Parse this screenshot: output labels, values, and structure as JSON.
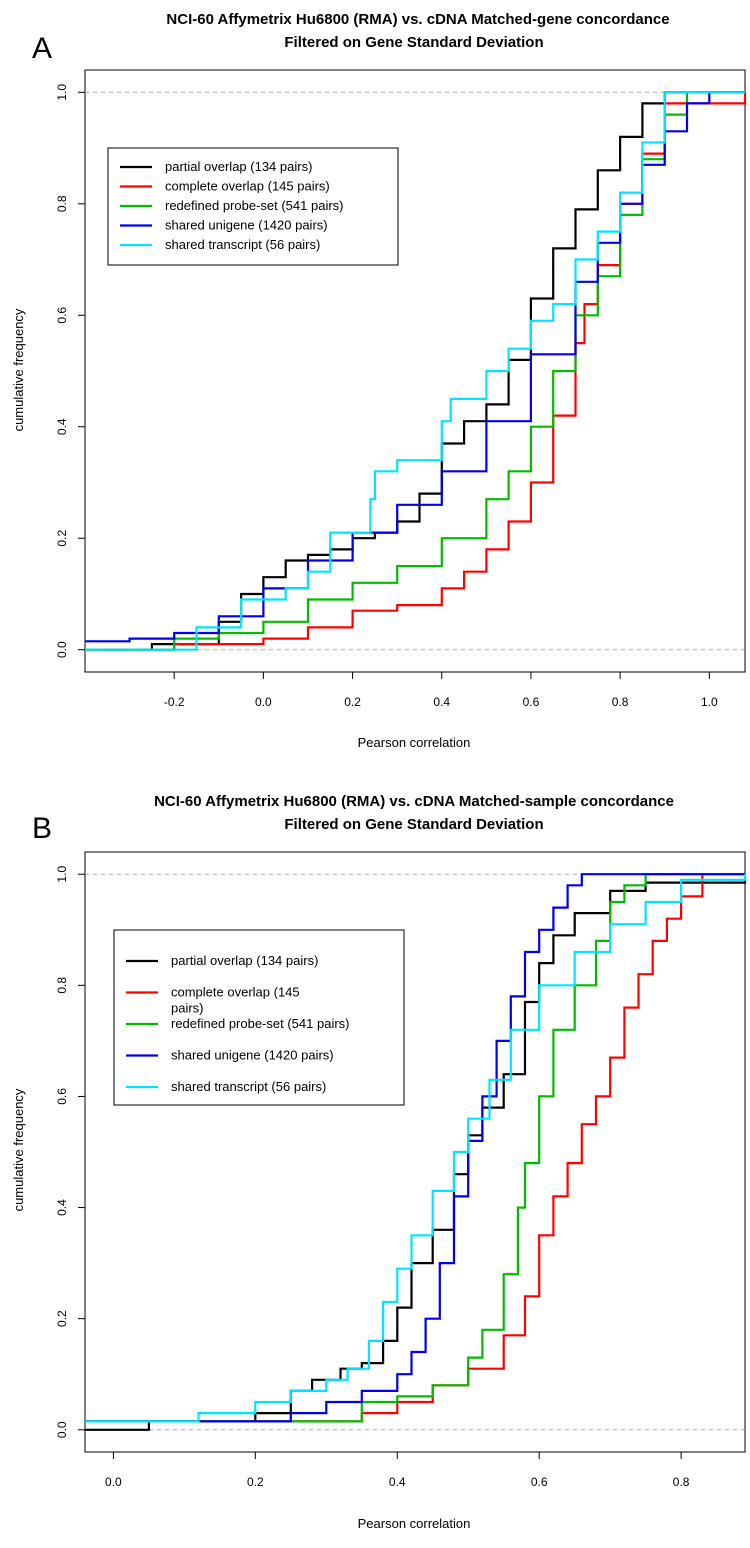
{
  "chart_data": [
    {
      "type": "line",
      "panel_label": "A",
      "title": "NCI-60 Affymetrix Hu6800 (RMA) vs. cDNA Matched-gene concordance",
      "subtitle": "Filtered on Gene Standard Deviation",
      "xlabel": "Pearson correlation",
      "ylabel": "cumulative frequency",
      "xlim": [
        -0.4,
        1.08
      ],
      "ylim": [
        -0.04,
        1.04
      ],
      "xticks": [
        -0.2,
        0.0,
        0.2,
        0.4,
        0.6,
        0.8,
        1.0
      ],
      "xtick_labels": [
        "-0.2",
        "0.0",
        "0.2",
        "0.4",
        "0.6",
        "0.8",
        "1.0"
      ],
      "yticks": [
        0.0,
        0.2,
        0.4,
        0.6,
        0.8,
        1.0
      ],
      "ytick_labels": [
        "0.0",
        "0.2",
        "0.4",
        "0.6",
        "0.8",
        "1.0"
      ],
      "reference_lines": [
        0,
        1
      ],
      "legend_position": "top-left",
      "series": [
        {
          "name": "partial overlap (134 pairs)",
          "color": "#000000",
          "x": [
            -0.4,
            -0.25,
            -0.1,
            -0.05,
            0.0,
            0.05,
            0.1,
            0.15,
            0.2,
            0.25,
            0.3,
            0.35,
            0.4,
            0.45,
            0.5,
            0.55,
            0.6,
            0.65,
            0.7,
            0.75,
            0.8,
            0.85,
            0.9,
            1.08
          ],
          "y": [
            0.0,
            0.01,
            0.05,
            0.1,
            0.13,
            0.16,
            0.17,
            0.18,
            0.2,
            0.21,
            0.23,
            0.28,
            0.37,
            0.41,
            0.44,
            0.52,
            0.63,
            0.72,
            0.79,
            0.86,
            0.92,
            0.98,
            1.0,
            1.0
          ]
        },
        {
          "name": "complete overlap (145 pairs)",
          "color": "#ff0000",
          "x": [
            -0.4,
            -0.2,
            -0.1,
            0.0,
            0.1,
            0.2,
            0.3,
            0.4,
            0.45,
            0.5,
            0.55,
            0.6,
            0.65,
            0.7,
            0.72,
            0.75,
            0.8,
            0.85,
            0.9,
            1.08
          ],
          "y": [
            0.0,
            0.01,
            0.01,
            0.02,
            0.04,
            0.07,
            0.08,
            0.11,
            0.14,
            0.18,
            0.23,
            0.3,
            0.42,
            0.55,
            0.62,
            0.69,
            0.8,
            0.89,
            0.98,
            1.0
          ]
        },
        {
          "name": "redefined probe-set (541 pairs)",
          "color": "#00bb00",
          "x": [
            -0.4,
            -0.2,
            -0.1,
            0.0,
            0.1,
            0.2,
            0.3,
            0.4,
            0.5,
            0.55,
            0.6,
            0.65,
            0.7,
            0.75,
            0.8,
            0.85,
            0.9,
            0.95,
            1.08
          ],
          "y": [
            0.0,
            0.02,
            0.03,
            0.05,
            0.09,
            0.12,
            0.15,
            0.2,
            0.27,
            0.32,
            0.4,
            0.5,
            0.6,
            0.67,
            0.78,
            0.88,
            0.96,
            1.0,
            1.0
          ]
        },
        {
          "name": "shared unigene (1420 pairs)",
          "color": "#0000ee",
          "x": [
            -0.4,
            -0.3,
            -0.2,
            -0.1,
            0.0,
            0.1,
            0.2,
            0.3,
            0.4,
            0.5,
            0.6,
            0.7,
            0.75,
            0.8,
            0.85,
            0.9,
            0.95,
            1.0,
            1.08
          ],
          "y": [
            0.015,
            0.02,
            0.03,
            0.06,
            0.11,
            0.16,
            0.21,
            0.26,
            0.32,
            0.41,
            0.53,
            0.66,
            0.73,
            0.8,
            0.87,
            0.93,
            0.98,
            1.0,
            1.0
          ]
        },
        {
          "name": "shared transcript (56 pairs)",
          "color": "#00e5ff",
          "x": [
            -0.4,
            -0.16,
            -0.15,
            -0.05,
            0.05,
            0.1,
            0.15,
            0.24,
            0.25,
            0.3,
            0.4,
            0.42,
            0.5,
            0.55,
            0.6,
            0.65,
            0.7,
            0.75,
            0.8,
            0.85,
            0.9,
            1.08
          ],
          "y": [
            0.0,
            0.0,
            0.04,
            0.09,
            0.11,
            0.14,
            0.21,
            0.27,
            0.32,
            0.34,
            0.41,
            0.45,
            0.5,
            0.54,
            0.59,
            0.62,
            0.7,
            0.75,
            0.82,
            0.91,
            1.0,
            1.0
          ]
        }
      ]
    },
    {
      "type": "line",
      "panel_label": "B",
      "title": "NCI-60 Affymetrix Hu6800 (RMA) vs. cDNA Matched-sample concordance",
      "subtitle": "Filtered on Gene Standard Deviation",
      "xlabel": "Pearson correlation",
      "ylabel": "cumulative frequency",
      "xlim": [
        -0.04,
        0.89
      ],
      "ylim": [
        -0.04,
        1.04
      ],
      "xticks": [
        0.0,
        0.2,
        0.4,
        0.6,
        0.8
      ],
      "xtick_labels": [
        "0.0",
        "0.2",
        "0.4",
        "0.6",
        "0.8"
      ],
      "yticks": [
        0.0,
        0.2,
        0.4,
        0.6,
        0.8,
        1.0
      ],
      "ytick_labels": [
        "0.0",
        "0.2",
        "0.4",
        "0.6",
        "0.8",
        "1.0"
      ],
      "reference_lines": [
        0,
        1
      ],
      "legend_position": "left",
      "series": [
        {
          "name": "partial overlap (134 pairs)",
          "color": "#000000",
          "x": [
            -0.04,
            0.05,
            0.2,
            0.25,
            0.28,
            0.32,
            0.35,
            0.38,
            0.4,
            0.42,
            0.45,
            0.48,
            0.5,
            0.52,
            0.55,
            0.58,
            0.6,
            0.62,
            0.65,
            0.7,
            0.75,
            0.89
          ],
          "y": [
            0.0,
            0.015,
            0.03,
            0.07,
            0.09,
            0.11,
            0.12,
            0.16,
            0.22,
            0.3,
            0.36,
            0.46,
            0.53,
            0.58,
            0.64,
            0.77,
            0.84,
            0.89,
            0.93,
            0.97,
            0.985,
            1.0
          ]
        },
        {
          "name": "complete overlap (145 pairs)",
          "color": "#ff0000",
          "x": [
            -0.04,
            0.3,
            0.35,
            0.4,
            0.45,
            0.5,
            0.55,
            0.58,
            0.6,
            0.62,
            0.64,
            0.66,
            0.68,
            0.7,
            0.72,
            0.74,
            0.76,
            0.78,
            0.8,
            0.83,
            0.89
          ],
          "y": [
            0.015,
            0.015,
            0.03,
            0.05,
            0.08,
            0.11,
            0.17,
            0.24,
            0.35,
            0.42,
            0.48,
            0.55,
            0.6,
            0.67,
            0.76,
            0.82,
            0.88,
            0.92,
            0.96,
            1.0,
            1.0
          ]
        },
        {
          "name": "redefined probe-set (541 pairs)",
          "color": "#00bb00",
          "x": [
            -0.04,
            0.28,
            0.35,
            0.4,
            0.45,
            0.5,
            0.52,
            0.55,
            0.57,
            0.58,
            0.6,
            0.62,
            0.65,
            0.68,
            0.7,
            0.72,
            0.75,
            0.8,
            0.89
          ],
          "y": [
            0.015,
            0.015,
            0.05,
            0.06,
            0.08,
            0.13,
            0.18,
            0.28,
            0.4,
            0.48,
            0.6,
            0.72,
            0.8,
            0.88,
            0.95,
            0.98,
            1.0,
            1.0,
            1.0
          ]
        },
        {
          "name": "shared unigene (1420 pairs)",
          "color": "#0000ee",
          "x": [
            -0.04,
            0.1,
            0.25,
            0.3,
            0.35,
            0.4,
            0.42,
            0.44,
            0.46,
            0.48,
            0.5,
            0.52,
            0.54,
            0.56,
            0.58,
            0.6,
            0.62,
            0.64,
            0.66,
            0.68,
            0.89
          ],
          "y": [
            0.015,
            0.015,
            0.03,
            0.05,
            0.07,
            0.1,
            0.14,
            0.2,
            0.3,
            0.42,
            0.52,
            0.6,
            0.7,
            0.78,
            0.86,
            0.9,
            0.94,
            0.98,
            1.0,
            1.0,
            1.0
          ]
        },
        {
          "name": "shared transcript (56 pairs)",
          "color": "#00e5ff",
          "x": [
            -0.04,
            0.12,
            0.2,
            0.25,
            0.3,
            0.33,
            0.36,
            0.38,
            0.4,
            0.42,
            0.45,
            0.48,
            0.5,
            0.53,
            0.56,
            0.6,
            0.65,
            0.7,
            0.75,
            0.8,
            0.89
          ],
          "y": [
            0.015,
            0.03,
            0.05,
            0.07,
            0.09,
            0.11,
            0.16,
            0.23,
            0.29,
            0.35,
            0.43,
            0.5,
            0.56,
            0.63,
            0.72,
            0.8,
            0.86,
            0.91,
            0.95,
            0.99,
            1.0
          ]
        }
      ]
    }
  ],
  "panels": [
    {
      "legend_lines": [
        [
          "partial overlap (134 pairs)"
        ],
        [
          "complete overlap (145 pairs)"
        ],
        [
          "redefined probe-set (541 pairs)"
        ],
        [
          "shared unigene (1420 pairs)"
        ],
        [
          "shared transcript (56 pairs)"
        ]
      ]
    },
    {
      "legend_lines": [
        [
          "partial overlap (134 pairs)"
        ],
        [
          "complete overlap (145",
          "pairs)"
        ],
        [
          "redefined probe-set (541 pairs)"
        ],
        [
          "shared unigene (1420 pairs)"
        ],
        [
          "shared transcript (56 pairs)"
        ]
      ]
    }
  ]
}
